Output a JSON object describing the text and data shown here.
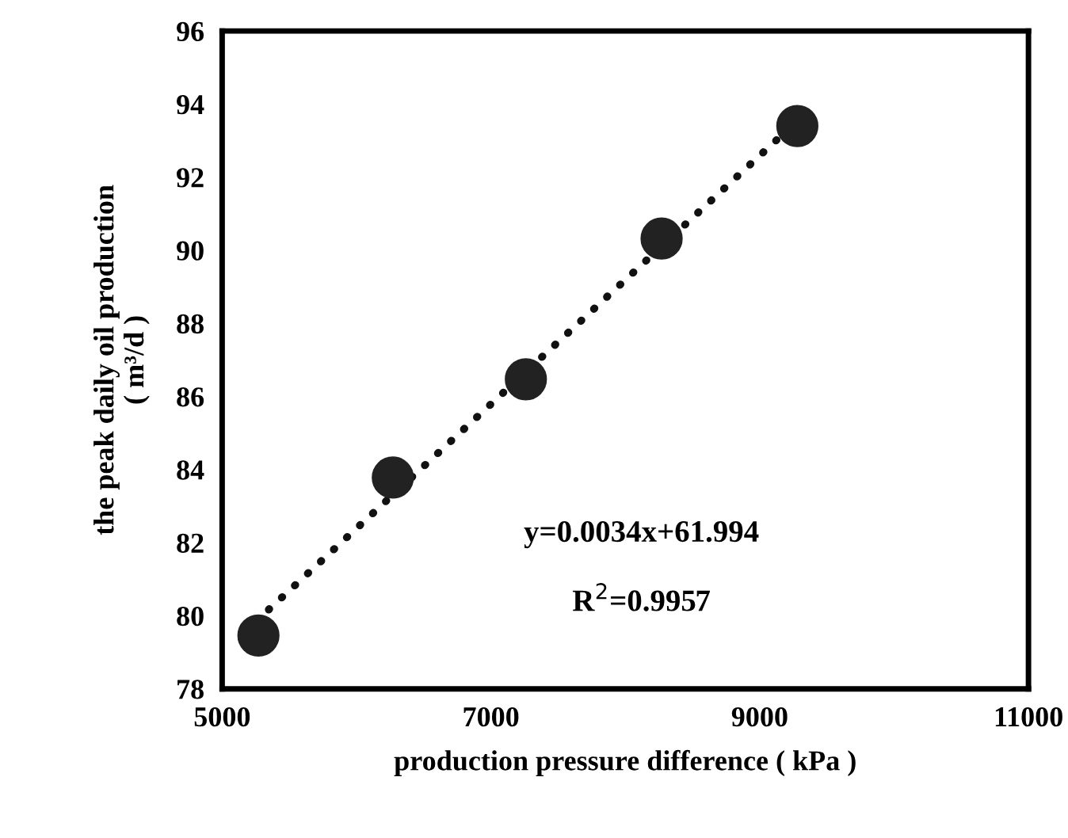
{
  "chart_data": {
    "type": "scatter",
    "xlabel": "production pressure difference ( kPa )",
    "ylabel": "the peak daily oil production\n( m³/d )",
    "series": [
      {
        "color": "#222222",
        "marker": "circle",
        "x": [
          5270,
          6270,
          7260,
          8270,
          9280
        ],
        "values": [
          79.46,
          83.78,
          86.47,
          90.32,
          93.4
        ]
      },
      {
        "type": "line",
        "color": "#111111",
        "line_style": "dotted",
        "marker": "none",
        "x": [
          5250,
          9300
        ],
        "values": [
          79.84,
          93.61
        ]
      }
    ],
    "annotations": [
      "y=0.0034x+61.994",
      "R$^{2}$=0.9957"
    ],
    "xlim": [
      5000,
      11000
    ],
    "xticks": [
      5000,
      7000,
      9000,
      11000
    ],
    "ylim": [
      78,
      96
    ],
    "yticks": [
      78,
      80,
      82,
      84,
      86,
      88,
      90,
      92,
      94,
      96
    ],
    "grid": false,
    "legend": false
  }
}
